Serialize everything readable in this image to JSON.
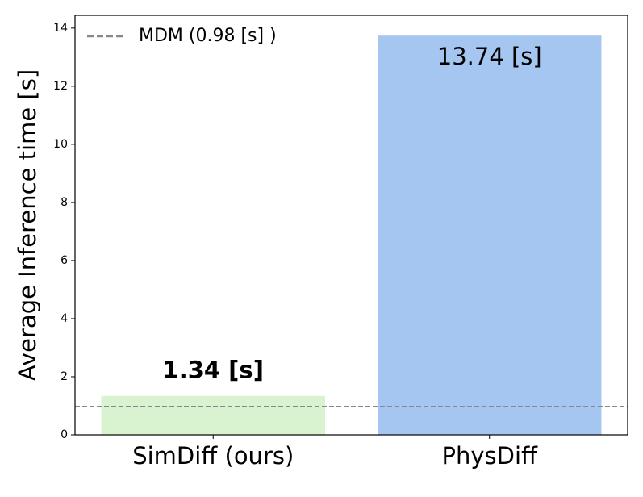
{
  "chart_data": {
    "type": "bar",
    "ylabel": "Average Inference time [s]",
    "categories": [
      "SimDiff (ours)",
      "PhysDiff"
    ],
    "values": [
      1.34,
      13.74
    ],
    "value_labels": [
      "1.34 [s]",
      "13.74 [s]"
    ],
    "colors": [
      "#d9f2d0",
      "#a4c6f0"
    ],
    "ylim": [
      0,
      14.44
    ],
    "yticks": [
      0,
      2,
      4,
      6,
      8,
      10,
      12,
      14
    ],
    "reference_line": {
      "name": "MDM (0.98  [s] )",
      "value": 0.98,
      "color": "#888888"
    },
    "legend": "upper left"
  }
}
